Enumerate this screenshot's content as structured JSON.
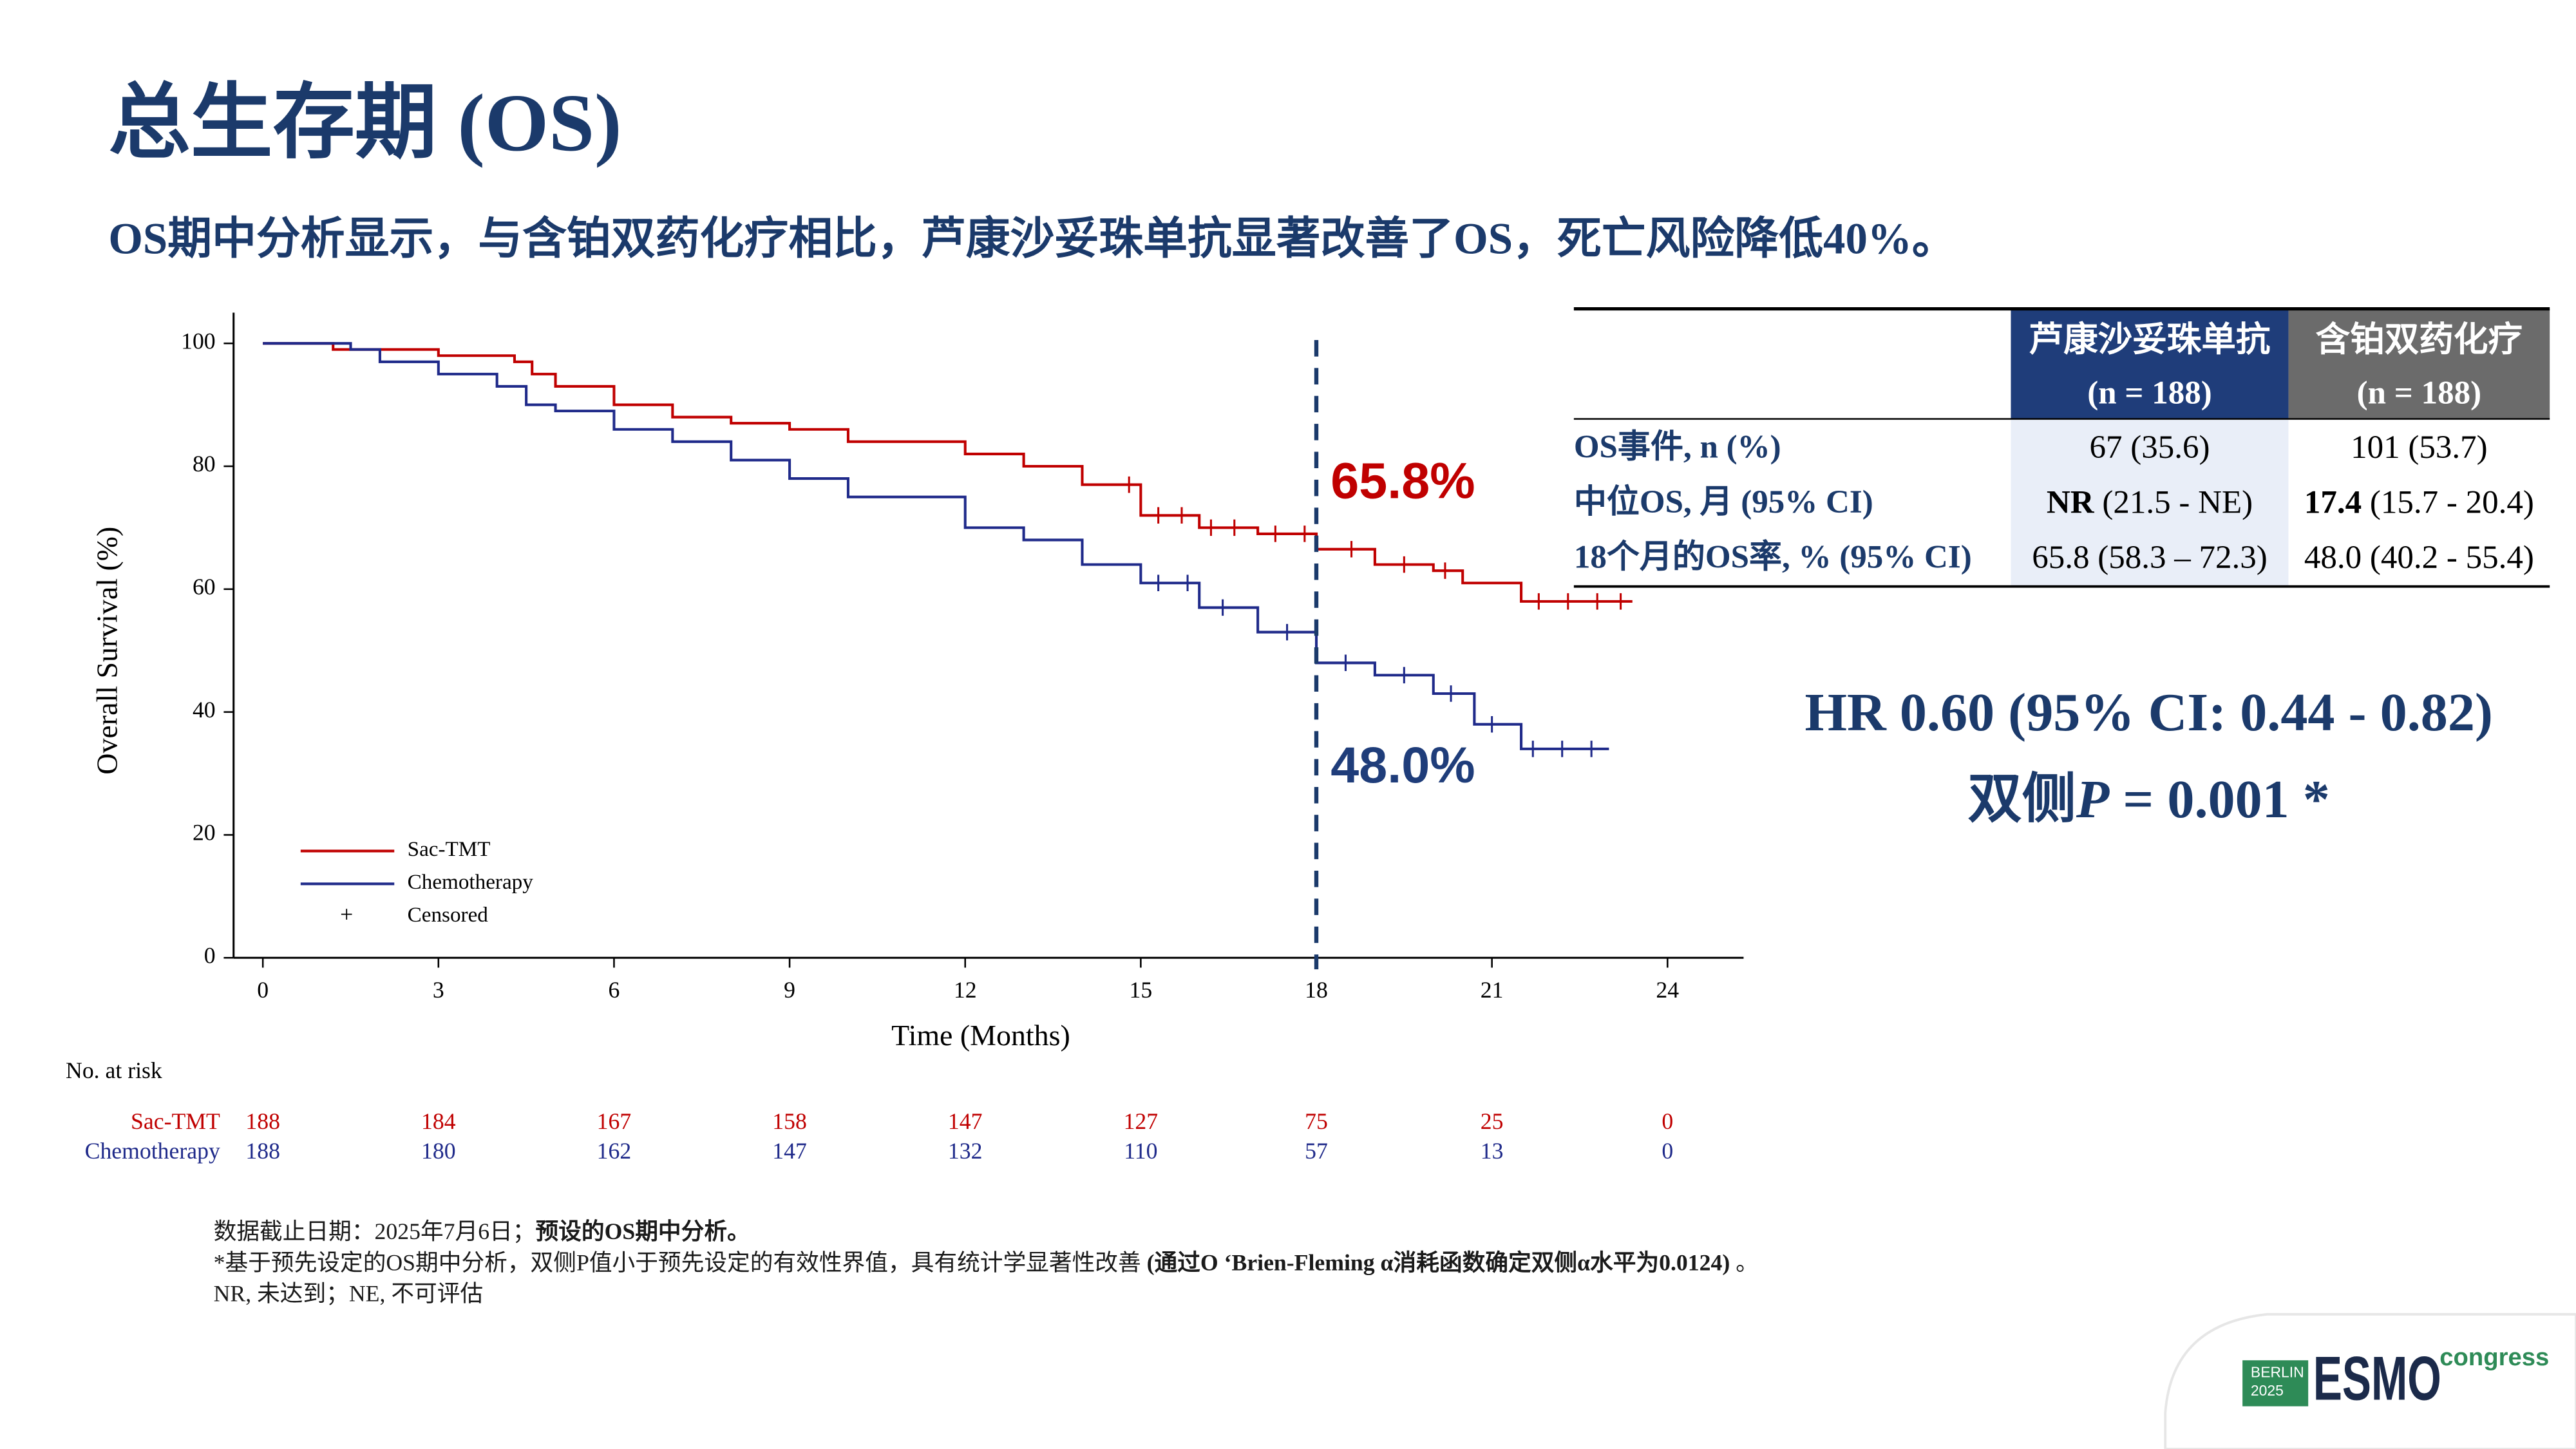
{
  "header": {
    "title": "总生存期 (OS)",
    "subtitle": "OS期中分析显示，与含铂双药化疗相比，芦康沙妥珠单抗显著改善了OS，死亡风险降低40%。"
  },
  "chart_data": {
    "type": "line",
    "y_label": "Overall Survival (%)",
    "x_label": "Time (Months)",
    "xlim": [
      -0.5,
      25.3
    ],
    "ylim": [
      0,
      105
    ],
    "xticks": [
      0,
      3,
      6,
      9,
      12,
      15,
      18,
      21,
      24
    ],
    "yticks": [
      0,
      20,
      40,
      60,
      80,
      100
    ],
    "landmark_x": 18,
    "censored_label": "Censored",
    "annotations": [
      {
        "text": "65.8%",
        "color": "#c00000"
      },
      {
        "text": "48.0%",
        "color": "#1f3d7a"
      }
    ],
    "series": [
      {
        "name": "Sac-TMT",
        "color": "#c00000",
        "x": [
          0,
          1.2,
          1.2,
          3,
          3,
          4.3,
          4.3,
          4.6,
          4.6,
          5,
          5,
          6,
          6,
          7,
          7,
          8,
          8,
          9,
          9,
          10,
          10,
          12,
          12,
          13,
          13,
          14,
          14,
          15,
          15,
          16,
          16,
          17,
          17,
          18,
          18,
          19,
          19,
          20,
          20,
          20.5,
          20.5,
          21.5,
          21.5,
          23.4
        ],
        "values": [
          100,
          100,
          99,
          99,
          98,
          98,
          97,
          97,
          95,
          95,
          93,
          93,
          90,
          90,
          88,
          88,
          87,
          87,
          86,
          86,
          84,
          84,
          82,
          82,
          80,
          80,
          77,
          77,
          72,
          72,
          70,
          70,
          69,
          69,
          66.5,
          66.5,
          64,
          64,
          63,
          63,
          61,
          61,
          58,
          58
        ],
        "censored_x": [
          14.8,
          15.3,
          15.7,
          16.2,
          16.6,
          17.3,
          17.8,
          18.6,
          19.5,
          20.2,
          21.8,
          22.3,
          22.8,
          23.2
        ],
        "censored_y": [
          77,
          72,
          72,
          70,
          70,
          69,
          69,
          66.5,
          64,
          63,
          58,
          58,
          58,
          58
        ]
      },
      {
        "name": "Chemotherapy",
        "color": "#1f2a8a",
        "x": [
          0,
          1.5,
          1.5,
          2,
          2,
          3,
          3,
          4,
          4,
          4.5,
          4.5,
          5,
          5,
          6,
          6,
          7,
          7,
          8,
          8,
          9,
          9,
          10,
          10,
          12,
          12,
          13,
          13,
          14,
          14,
          15,
          15,
          16,
          16,
          17,
          17,
          18,
          18,
          19,
          19,
          20,
          20,
          20.7,
          20.7,
          21.5,
          21.5,
          23
        ],
        "values": [
          100,
          100,
          99,
          99,
          97,
          97,
          95,
          95,
          93,
          93,
          90,
          90,
          89,
          89,
          86,
          86,
          84,
          84,
          81,
          81,
          78,
          78,
          75,
          75,
          70,
          70,
          68,
          68,
          64,
          64,
          61,
          61,
          57,
          57,
          53,
          53,
          48,
          48,
          46,
          46,
          43,
          43,
          38,
          38,
          34,
          34
        ],
        "censored_x": [
          15.3,
          15.8,
          16.4,
          17.5,
          18.5,
          19.5,
          20.3,
          21,
          21.7,
          22.2,
          22.7
        ],
        "censored_y": [
          61,
          61,
          57,
          53,
          48,
          46,
          43,
          38,
          34,
          34,
          34
        ]
      }
    ]
  },
  "risk_table": {
    "title": "No. at risk",
    "rows": [
      {
        "name": "Sac-TMT",
        "color": "#c00000",
        "counts": [
          188,
          184,
          167,
          158,
          147,
          127,
          75,
          25,
          0
        ]
      },
      {
        "name": "Chemotherapy",
        "color": "#1f2a8a",
        "counts": [
          188,
          180,
          162,
          147,
          132,
          110,
          57,
          13,
          0
        ]
      }
    ]
  },
  "os_table": {
    "columns": [
      {
        "name": "芦康沙妥珠单抗",
        "n": "(n = 188)",
        "color": "#1f3d7a",
        "cell_color": "#e9eef8"
      },
      {
        "name": "含铂双药化疗",
        "n": "(n = 188)",
        "color": "#6b6b6b",
        "cell_color": "#ffffff"
      }
    ],
    "rows": [
      {
        "label": "OS事件, n (%)",
        "cells": [
          [
            {
              "text": "67 (35.6)"
            }
          ],
          [
            {
              "text": "101 (53.7)"
            }
          ]
        ]
      },
      {
        "label": "中位OS, 月 (95% CI)",
        "cells": [
          [
            {
              "text": "NR",
              "bold": true
            },
            {
              "text": " (21.5 - NE)"
            }
          ],
          [
            {
              "text": "17.4",
              "bold": true
            },
            {
              "text": " (15.7 - 20.4)"
            }
          ]
        ]
      },
      {
        "label": "18个月的OS率, % (95% CI)",
        "cells": [
          [
            {
              "text": "65.8 (58.3 – 72.3)"
            }
          ],
          [
            {
              "text": "48.0 (40.2 - 55.4)"
            }
          ]
        ]
      }
    ]
  },
  "hr": {
    "line1": "HR 0.60 (95% CI: 0.44 - 0.82)",
    "line2": [
      {
        "text": "双侧"
      },
      {
        "text": "P",
        "italic": true
      },
      {
        "text": " = 0.001 *"
      }
    ]
  },
  "footnotes": [
    [
      {
        "text": "数据截止日期：2025年7月6日；"
      },
      {
        "text": "预设的OS期中分析。",
        "bold": true
      }
    ],
    [
      {
        "text": "*基于预先设定的OS期中分析，双侧P值小于预先设定的有效性界值，具有统计学显著性改善 "
      },
      {
        "text": "(通过O ‘Brien-Fleming α消耗函数确定双侧α水平为0.0124)",
        "bold": true
      },
      {
        "text": " 。"
      }
    ],
    [
      {
        "text": "NR, 未达到；NE, 不可评估"
      }
    ]
  ],
  "logo": {
    "city": "BERLIN",
    "year": "2025",
    "brand": "ESMO",
    "event": "congress"
  }
}
